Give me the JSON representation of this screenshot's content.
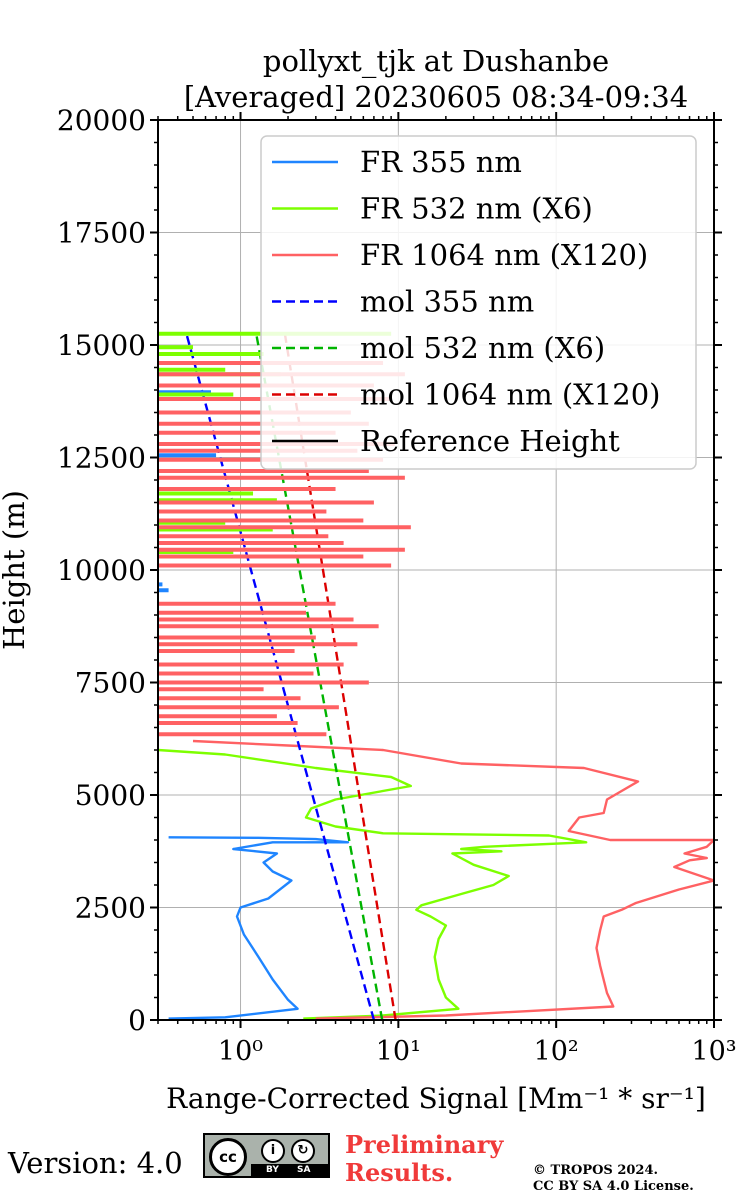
{
  "title": {
    "line1": "pollyxt_tjk at Dushanbe",
    "line2": "[Averaged] 20230605 08:34-09:34"
  },
  "footer": {
    "version": "Version: 4.0",
    "license_badge": {
      "cc": "cc",
      "by": "BY",
      "sa": "SA",
      "icon_by": "person-icon",
      "icon_sa": "share-alike-icon"
    },
    "preliminary_line1": "Preliminary",
    "preliminary_line2": "Results.",
    "copyright_line1": "© TROPOS 2024.",
    "copyright_line2": "CC BY SA 4.0 License.",
    "preliminary_color": "#f03a3a"
  },
  "chart_data": {
    "type": "line",
    "title": "pollyxt_tjk at Dushanbe [Averaged] 20230605 08:34-09:34",
    "xlabel": "Range-Corrected Signal [Mm⁻¹ * sr⁻¹]",
    "ylabel": "Height (m)",
    "xscale": "log",
    "xlim": [
      0.3,
      1000
    ],
    "ylim": [
      0,
      20000
    ],
    "xticks": [
      1,
      10,
      100,
      1000
    ],
    "xtick_labels": [
      "10⁰",
      "10¹",
      "10²",
      "10³"
    ],
    "yticks": [
      0,
      2500,
      5000,
      7500,
      10000,
      12500,
      15000,
      17500,
      20000
    ],
    "ytick_labels": [
      "0",
      "2500",
      "5000",
      "7500",
      "10000",
      "12500",
      "15000",
      "17500",
      "20000"
    ],
    "grid": true,
    "legend_position": "top-right",
    "series": [
      {
        "name": "FR 355 nm",
        "color": "#1f85ff",
        "style": "solid",
        "x": [
          0.35,
          0.8,
          2.3,
          2.0,
          1.6,
          1.3,
          1.05,
          0.95,
          1.0,
          1.5,
          2.1,
          1.6,
          1.4,
          1.7,
          1.25,
          0.9,
          1.6,
          4.8,
          3.0,
          1.3,
          0.35
        ],
        "y": [
          30,
          60,
          250,
          450,
          900,
          1400,
          1900,
          2300,
          2500,
          2700,
          3100,
          3300,
          3500,
          3700,
          3750,
          3800,
          3950,
          3950,
          4020,
          4050,
          4060
        ]
      },
      {
        "name": "FR 532 nm (X6)",
        "color": "#7dff00",
        "style": "solid",
        "x": [
          2.5,
          8,
          24,
          20,
          18,
          17,
          18,
          20,
          16,
          13,
          14,
          25,
          40,
          50,
          30,
          22,
          45,
          25,
          35,
          155,
          90,
          8,
          4,
          2.6,
          2.8,
          4,
          12,
          9,
          3,
          0.8,
          0.3
        ],
        "y": [
          30,
          100,
          250,
          500,
          900,
          1400,
          1800,
          2100,
          2300,
          2450,
          2550,
          2800,
          3000,
          3200,
          3450,
          3700,
          3750,
          3800,
          3850,
          3950,
          4100,
          4150,
          4300,
          4500,
          4700,
          4900,
          5200,
          5400,
          5600,
          5900,
          6000
        ]
      },
      {
        "name": "FR 1064 nm (X120)",
        "color": "#ff6163",
        "style": "solid",
        "x": [
          3,
          20,
          230,
          210,
          190,
          180,
          190,
          200,
          260,
          320,
          600,
          1000,
          560,
          700,
          900,
          650,
          900,
          1000,
          220,
          120,
          140,
          200,
          210,
          330,
          150,
          25,
          8,
          2,
          0.5
        ],
        "y": [
          30,
          100,
          300,
          600,
          1200,
          1600,
          2000,
          2300,
          2450,
          2600,
          2900,
          3100,
          3400,
          3550,
          3600,
          3700,
          3850,
          4000,
          4000,
          4200,
          4500,
          4600,
          4900,
          5300,
          5600,
          5700,
          6000,
          6100,
          6200
        ]
      },
      {
        "name": "mol 355 nm",
        "color": "#0000ff",
        "style": "dashed",
        "x": [
          7.0,
          0.45
        ],
        "y": [
          0,
          15300
        ]
      },
      {
        "name": "mol 532 nm (X6)",
        "color": "#00b400",
        "style": "dashed",
        "x": [
          7.9,
          1.25
        ],
        "y": [
          0,
          15300
        ]
      },
      {
        "name": "mol 1064 nm (X120)",
        "color": "#dc0000",
        "style": "dashed",
        "x": [
          9.6,
          1.9
        ],
        "y": [
          0,
          15300
        ]
      },
      {
        "name": "Reference Height",
        "color": "#000000",
        "style": "solid",
        "x": [],
        "y": []
      }
    ],
    "noisy_segments": [
      {
        "series": "FR 355 nm",
        "segments": [
          [
            9550,
            0.35
          ],
          [
            9680,
            0.32
          ],
          [
            12550,
            0.7
          ],
          [
            13950,
            0.65
          ]
        ]
      },
      {
        "series": "FR 532 nm (X6)",
        "segments": [
          [
            10400,
            0.9
          ],
          [
            10600,
            0.6
          ],
          [
            10900,
            1.6
          ],
          [
            11050,
            0.8
          ],
          [
            11300,
            1.3
          ],
          [
            11550,
            1.7
          ],
          [
            11700,
            1.2
          ],
          [
            13900,
            0.9
          ],
          [
            14350,
            1.8
          ],
          [
            14450,
            0.8
          ],
          [
            14800,
            1.4
          ],
          [
            14950,
            0.5
          ],
          [
            15250,
            9.0
          ]
        ]
      },
      {
        "series": "FR 1064 nm (X120)",
        "segments": [
          [
            6350,
            3.5
          ],
          [
            6600,
            2.3
          ],
          [
            6750,
            1.7
          ],
          [
            6950,
            4.2
          ],
          [
            7150,
            2.4
          ],
          [
            7350,
            1.4
          ],
          [
            7500,
            6.5
          ],
          [
            7700,
            2.9
          ],
          [
            7900,
            4.5
          ],
          [
            8200,
            2.2
          ],
          [
            8350,
            5.5
          ],
          [
            8500,
            3.0
          ],
          [
            8750,
            7.5
          ],
          [
            8900,
            5.2
          ],
          [
            9050,
            2.6
          ],
          [
            9250,
            4.0
          ],
          [
            10100,
            9.0
          ],
          [
            10300,
            6.0
          ],
          [
            10450,
            11.0
          ],
          [
            10600,
            4.5
          ],
          [
            10750,
            3.6
          ],
          [
            10950,
            12.0
          ],
          [
            11100,
            6.0
          ],
          [
            11300,
            3.5
          ],
          [
            11500,
            7.0
          ],
          [
            11800,
            4.0
          ],
          [
            12050,
            11.0
          ],
          [
            12200,
            6.5
          ],
          [
            12450,
            8.0
          ],
          [
            12650,
            5.5
          ],
          [
            12800,
            9.5
          ],
          [
            13050,
            4.0
          ],
          [
            13250,
            6.5
          ],
          [
            13500,
            5.0
          ],
          [
            13800,
            9.0
          ],
          [
            14100,
            7.0
          ],
          [
            14350,
            11.0
          ],
          [
            14600,
            8.0
          ]
        ]
      }
    ]
  }
}
